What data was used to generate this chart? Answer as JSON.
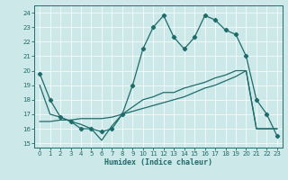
{
  "xlabel": "Humidex (Indice chaleur)",
  "xlim": [
    -0.5,
    23.5
  ],
  "ylim": [
    14.7,
    24.5
  ],
  "yticks": [
    15,
    16,
    17,
    18,
    19,
    20,
    21,
    22,
    23,
    24
  ],
  "xticks": [
    0,
    1,
    2,
    3,
    4,
    5,
    6,
    7,
    8,
    9,
    10,
    11,
    12,
    13,
    14,
    15,
    16,
    17,
    18,
    19,
    20,
    21,
    22,
    23
  ],
  "bg_color": "#cce8e8",
  "line_color": "#1f6b6b",
  "curve1_x": [
    0,
    1,
    2,
    3,
    4,
    5,
    6,
    7,
    8,
    9,
    10,
    11,
    12,
    13,
    14,
    15,
    16,
    17,
    18,
    19,
    20,
    21,
    22,
    23
  ],
  "curve1_y": [
    19.8,
    18.0,
    16.8,
    16.5,
    16.0,
    16.0,
    15.8,
    16.0,
    17.0,
    19.0,
    21.5,
    23.0,
    23.8,
    22.3,
    21.5,
    22.3,
    23.8,
    23.5,
    22.8,
    22.5,
    21.0,
    18.0,
    17.0,
    15.5
  ],
  "curve2_x": [
    0,
    1,
    2,
    3,
    4,
    5,
    6,
    7,
    8,
    9,
    10,
    11,
    12,
    13,
    14,
    15,
    16,
    17,
    18,
    19,
    20,
    21,
    22,
    23
  ],
  "curve2_y": [
    19.0,
    17.0,
    16.8,
    16.5,
    16.3,
    16.0,
    15.2,
    16.2,
    17.0,
    17.5,
    18.0,
    18.2,
    18.5,
    18.5,
    18.8,
    19.0,
    19.2,
    19.5,
    19.7,
    20.0,
    20.0,
    16.0,
    16.0,
    16.0
  ],
  "curve3_x": [
    0,
    1,
    2,
    3,
    4,
    5,
    6,
    7,
    8,
    9,
    10,
    11,
    12,
    13,
    14,
    15,
    16,
    17,
    18,
    19,
    20,
    21,
    22,
    23
  ],
  "curve3_y": [
    16.5,
    16.5,
    16.6,
    16.6,
    16.7,
    16.7,
    16.7,
    16.8,
    17.0,
    17.2,
    17.4,
    17.6,
    17.8,
    18.0,
    18.2,
    18.5,
    18.8,
    19.0,
    19.3,
    19.6,
    20.0,
    16.0,
    16.0,
    16.0
  ]
}
